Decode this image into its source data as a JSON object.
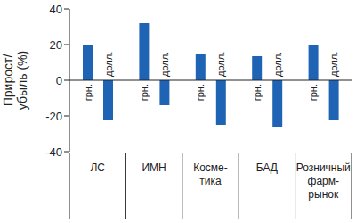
{
  "chart_data": {
    "type": "bar",
    "y_label": "Прирост/\nубыль (%)",
    "categories": [
      "ЛС",
      "ИМН",
      "Косме-\nтика",
      "БАД",
      "Розничный\nфарм-\nрынок"
    ],
    "series": [
      {
        "name": "грн.",
        "color": "#1f64b4",
        "values": [
          19.5,
          32,
          15,
          13.5,
          20
        ]
      },
      {
        "name": "долл.",
        "color": "#1f64b4",
        "values": [
          -22,
          -14,
          -25,
          -26,
          -22
        ]
      }
    ],
    "ylim": [
      -40,
      40
    ],
    "yticks": [
      -40,
      -20,
      0,
      20,
      40
    ],
    "grid": false,
    "data_labels": false
  }
}
